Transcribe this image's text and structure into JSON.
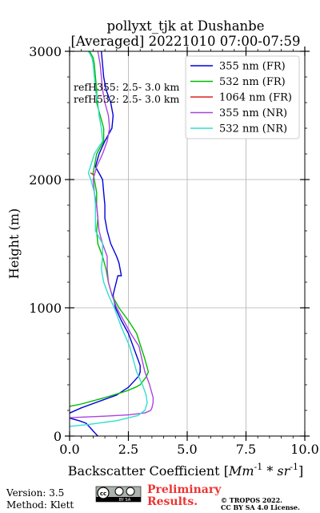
{
  "chart_data": {
    "type": "line",
    "title": [
      "pollyxt_tjk at Dushanbe",
      "[Averaged] 20221010 07:00-07:59"
    ],
    "xlabel": "Backscatter Coefficient",
    "xlabel_unit_pre": "[",
    "xlabel_unit_math": "Mm",
    "xlabel_unit_sup1": "-1",
    "xlabel_unit_mid": " * sr",
    "xlabel_unit_sup2": "-1",
    "xlabel_unit_post": "]",
    "ylabel": "Height (m)",
    "xlim": [
      0,
      10
    ],
    "ylim": [
      0,
      3000
    ],
    "xticks": [
      "0.0",
      "2.5",
      "5.0",
      "7.5",
      "10.0"
    ],
    "xtick_values": [
      0,
      2.5,
      5,
      7.5,
      10
    ],
    "yticks": [
      "0",
      "1000",
      "2000",
      "3000"
    ],
    "ytick_values": [
      0,
      1000,
      2000,
      3000
    ],
    "grid": true,
    "legend_position": "top-right",
    "annotations": [
      "refH355:  2.5- 3.0 km",
      "refH532:  2.5- 3.0 km"
    ],
    "series": [
      {
        "name": "355 nm (FR)",
        "color": "#0000dd",
        "x": [
          1.5,
          1.45,
          1.4,
          1.35,
          1.3,
          1.2,
          1.1,
          1.0,
          0.9,
          0.8,
          0.7,
          0.4,
          -0.3,
          0.5,
          2.0,
          2.5,
          2.75,
          2.95,
          3.0,
          3.0,
          2.9,
          2.7,
          2.5,
          2.2,
          1.95,
          1.85,
          2.05,
          2.2,
          2.1,
          2.0,
          1.75,
          1.6,
          1.5,
          1.5,
          1.45,
          1.4,
          1.25,
          1.1,
          1.25,
          1.5,
          1.8,
          1.85,
          1.75,
          1.55,
          1.45,
          1.4,
          1.35,
          1.3,
          1.2,
          0.95
        ],
        "y": [
          -100,
          -80,
          -60,
          -40,
          -20,
          0,
          20,
          40,
          60,
          80,
          100,
          120,
          155,
          220,
          320,
          380,
          430,
          470,
          500,
          550,
          600,
          700,
          800,
          900,
          1000,
          1100,
          1250,
          1250,
          1350,
          1400,
          1500,
          1600,
          1700,
          1800,
          1900,
          2000,
          2050,
          2100,
          2200,
          2300,
          2400,
          2500,
          2600,
          2700,
          2800,
          2900,
          3000,
          3050,
          3100,
          3150
        ]
      },
      {
        "name": "532 nm (FR)",
        "color": "#00bb00",
        "x": [
          -0.3,
          0.5,
          1.5,
          2.4,
          2.8,
          3.0,
          3.25,
          3.35,
          3.2,
          2.85,
          2.5,
          2.1,
          1.8,
          1.65,
          1.55,
          1.4,
          1.2,
          1.15,
          1.2,
          1.15,
          1.15,
          1.05,
          1.0,
          1.15,
          1.45,
          1.45,
          1.3,
          1.15,
          1.15,
          1.1,
          1.05,
          1.0,
          0.85,
          0.6
        ],
        "y": [
          220,
          250,
          300,
          350,
          380,
          400,
          460,
          500,
          600,
          800,
          900,
          1000,
          1100,
          1200,
          1300,
          1400,
          1500,
          1600,
          1700,
          1800,
          1900,
          2000,
          2050,
          2200,
          2300,
          2400,
          2500,
          2600,
          2700,
          2800,
          2900,
          2950,
          3000,
          3100
        ]
      },
      {
        "name": "1064 nm (FR)",
        "color": "#dd2222",
        "x": [
          1.0,
          0.9
        ],
        "y": [
          2040,
          2050
        ]
      },
      {
        "name": "355 nm (NR)",
        "color": "#aa44dd",
        "x": [
          -0.3,
          0.2,
          1.5,
          2.5,
          3.2,
          3.45,
          3.5,
          3.55,
          3.55,
          3.4,
          3.2,
          2.95,
          2.6,
          2.3,
          2.0,
          1.8,
          1.65,
          1.6,
          1.6,
          1.4,
          1.25,
          1.2,
          1.15,
          1.05,
          1.0,
          1.15,
          1.4,
          1.6,
          1.7,
          1.65,
          1.5,
          1.4,
          1.35,
          1.3,
          1.2,
          0.9
        ],
        "y": [
          140,
          145,
          155,
          165,
          180,
          200,
          220,
          260,
          300,
          400,
          500,
          700,
          800,
          900,
          1000,
          1100,
          1200,
          1300,
          1400,
          1500,
          1600,
          1700,
          1800,
          1900,
          2000,
          2100,
          2200,
          2300,
          2400,
          2500,
          2600,
          2700,
          2800,
          2900,
          3000,
          3100
        ]
      },
      {
        "name": "532 nm (NR)",
        "color": "#33ddcc",
        "x": [
          -0.3,
          0.8,
          2.0,
          2.9,
          3.2,
          3.3,
          3.25,
          3.1,
          2.85,
          2.55,
          2.2,
          1.9,
          1.65,
          1.45,
          1.35,
          1.4,
          1.4,
          1.25,
          1.1,
          1.1,
          1.05,
          0.9,
          0.8,
          1.05,
          1.4,
          1.35,
          1.25,
          1.2,
          1.1,
          1.05,
          1.0,
          0.95,
          0.8
        ],
        "y": [
          70,
          90,
          120,
          160,
          200,
          260,
          320,
          400,
          500,
          700,
          850,
          1000,
          1100,
          1200,
          1300,
          1400,
          1500,
          1550,
          1600,
          1800,
          1900,
          2000,
          2050,
          2200,
          2300,
          2400,
          2500,
          2600,
          2700,
          2800,
          2900,
          2950,
          3000
        ]
      }
    ]
  },
  "footer": {
    "version": "Version: 3.5",
    "method": "Method: Klett",
    "prelim_line1": "Preliminary",
    "prelim_line2": "Results.",
    "copyright_line1": "© TROPOS 2022.",
    "copyright_line2": "CC BY SA 4.0 License.",
    "cc_badge_text": "BY   SA"
  }
}
